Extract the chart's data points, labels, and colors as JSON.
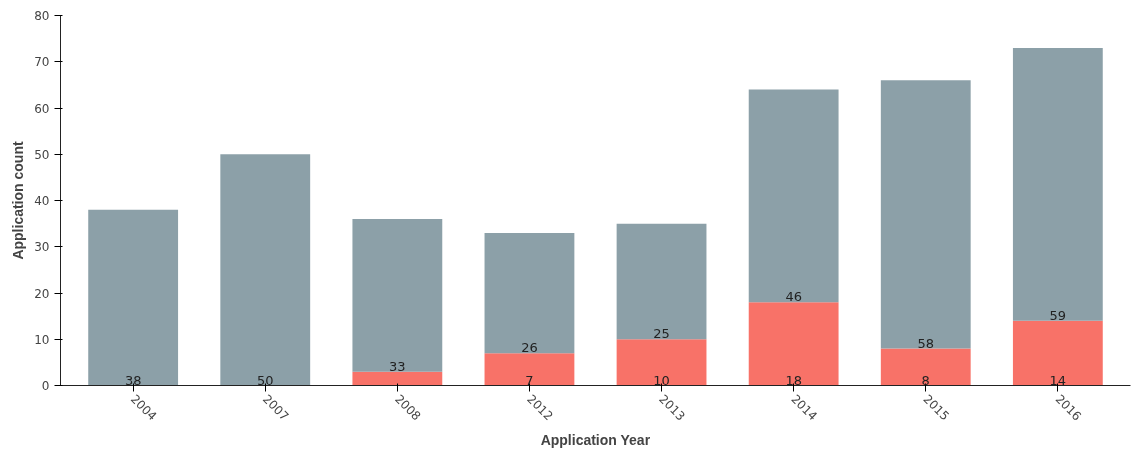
{
  "chart_data": {
    "type": "bar",
    "stacked": true,
    "xlabel": "Application Year",
    "ylabel": "Application count",
    "categories": [
      "2004",
      "2007",
      "2008",
      "2012",
      "2013",
      "2014",
      "2015",
      "2016"
    ],
    "series": [
      {
        "color": "#f87268",
        "values": [
          0,
          0,
          3,
          7,
          10,
          18,
          8,
          14
        ],
        "value_labels": [
          null,
          null,
          null,
          "7",
          "10",
          "18",
          "8",
          "14"
        ]
      },
      {
        "color": "#8ca0a8",
        "values": [
          38,
          50,
          33,
          26,
          25,
          46,
          58,
          59
        ],
        "value_labels": [
          "38",
          "50",
          "33",
          "26",
          "25",
          "46",
          "58",
          "59"
        ]
      }
    ],
    "ylim": [
      0,
      80
    ],
    "yticks": [
      0,
      10,
      20,
      30,
      40,
      50,
      60,
      70,
      80
    ],
    "grid": false
  }
}
